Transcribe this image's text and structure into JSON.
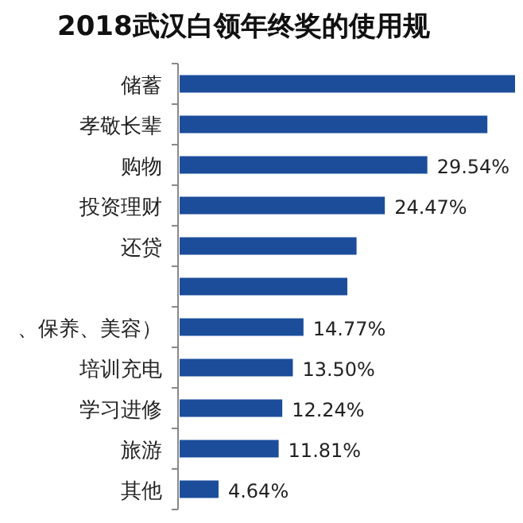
{
  "chart_data": {
    "type": "bar",
    "orientation": "horizontal",
    "title": "2018武汉白领年终奖的使用规",
    "categories": [
      "储蓄",
      "孝敬长辈",
      "购物",
      "投资理财",
      "还贷",
      null,
      "、保养、美容）",
      "培训充电",
      "学习进修",
      "旅游",
      "其他"
    ],
    "values": [
      40,
      36.7,
      29.54,
      24.47,
      21.1,
      20,
      14.77,
      13.5,
      12.24,
      11.81,
      4.64
    ],
    "value_labels": [
      null,
      null,
      "29.54%",
      "24.47%",
      null,
      null,
      "14.77%",
      "13.50%",
      "12.24%",
      "11.81%",
      "4.64%"
    ],
    "color": "#1b4d9b"
  }
}
